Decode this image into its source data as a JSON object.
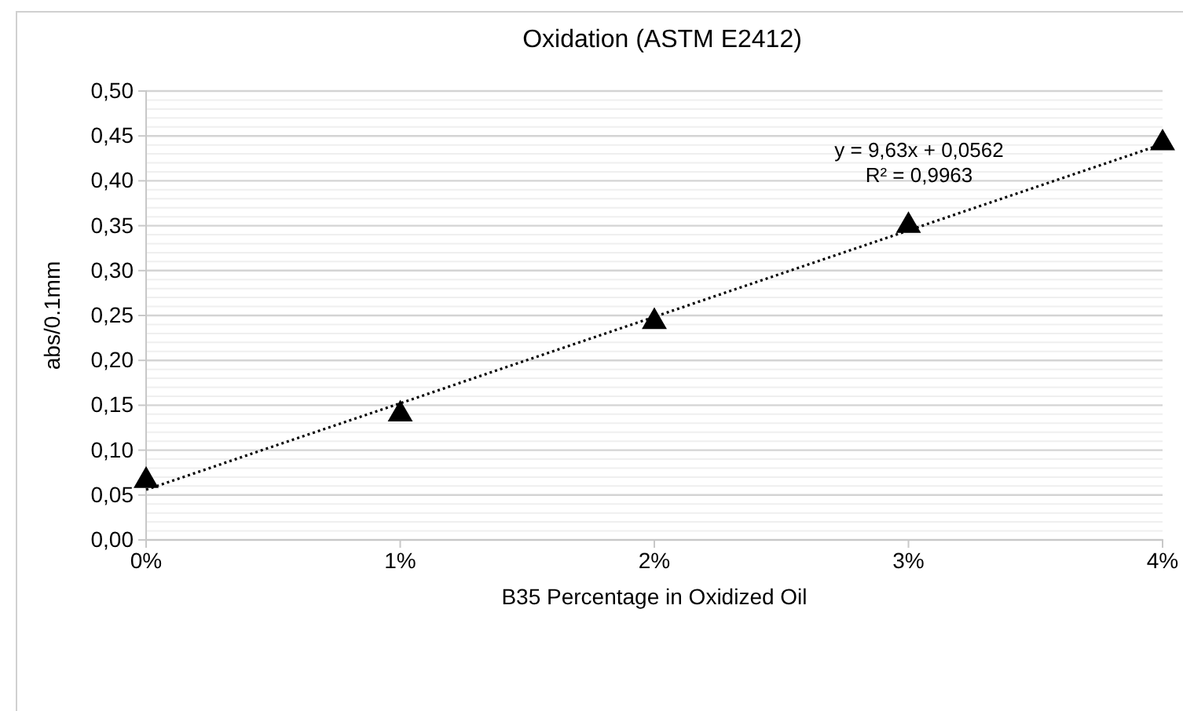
{
  "chart_data": {
    "type": "scatter",
    "title": "Oxidation (ASTM E2412)",
    "xlabel": "B35 Percentage in Oxidized Oil",
    "ylabel": "abs/0.1mm",
    "x": [
      0,
      0.01,
      0.02,
      0.03,
      0.04
    ],
    "series": [
      {
        "color": "#000000",
        "marker": "triangle",
        "values": [
          0.066,
          0.14,
          0.243,
          0.35,
          0.442
        ]
      },
      {
        "type": "line",
        "color": "#000000",
        "marker": "none",
        "line_style": "dotted",
        "x": [
          0,
          0.04
        ],
        "values": [
          0.056,
          0.441
        ]
      }
    ],
    "xlim": [
      0,
      0.04
    ],
    "xticks": [
      {
        "value": 0,
        "label": "0%"
      },
      {
        "value": 0.01,
        "label": "1%"
      },
      {
        "value": 0.02,
        "label": "2%"
      },
      {
        "value": 0.03,
        "label": "3%"
      },
      {
        "value": 0.04,
        "label": "4%"
      }
    ],
    "ylim": [
      0,
      0.5
    ],
    "yticks": [
      {
        "value": 0,
        "label": "0,00"
      },
      {
        "value": 0.01,
        "label": null
      },
      {
        "value": 0.02,
        "label": null
      },
      {
        "value": 0.03,
        "label": null
      },
      {
        "value": 0.04,
        "label": null
      },
      {
        "value": 0.05,
        "label": "0,05"
      },
      {
        "value": 0.06,
        "label": null
      },
      {
        "value": 0.07,
        "label": null
      },
      {
        "value": 0.08,
        "label": null
      },
      {
        "value": 0.09,
        "label": null
      },
      {
        "value": 0.1,
        "label": "0,10"
      },
      {
        "value": 0.11,
        "label": null
      },
      {
        "value": 0.12,
        "label": null
      },
      {
        "value": 0.13,
        "label": null
      },
      {
        "value": 0.14,
        "label": null
      },
      {
        "value": 0.15,
        "label": "0,15"
      },
      {
        "value": 0.16,
        "label": null
      },
      {
        "value": 0.17,
        "label": null
      },
      {
        "value": 0.18,
        "label": null
      },
      {
        "value": 0.19,
        "label": null
      },
      {
        "value": 0.2,
        "label": "0,20"
      },
      {
        "value": 0.21,
        "label": null
      },
      {
        "value": 0.22,
        "label": null
      },
      {
        "value": 0.23,
        "label": null
      },
      {
        "value": 0.24,
        "label": null
      },
      {
        "value": 0.25,
        "label": "0,25"
      },
      {
        "value": 0.26,
        "label": null
      },
      {
        "value": 0.27,
        "label": null
      },
      {
        "value": 0.28,
        "label": null
      },
      {
        "value": 0.29,
        "label": null
      },
      {
        "value": 0.3,
        "label": "0,30"
      },
      {
        "value": 0.31,
        "label": null
      },
      {
        "value": 0.32,
        "label": null
      },
      {
        "value": 0.33,
        "label": null
      },
      {
        "value": 0.34,
        "label": null
      },
      {
        "value": 0.35,
        "label": "0,35"
      },
      {
        "value": 0.36,
        "label": null
      },
      {
        "value": 0.37,
        "label": null
      },
      {
        "value": 0.38,
        "label": null
      },
      {
        "value": 0.39,
        "label": null
      },
      {
        "value": 0.4,
        "label": "0,40"
      },
      {
        "value": 0.41,
        "label": null
      },
      {
        "value": 0.42,
        "label": null
      },
      {
        "value": 0.43,
        "label": null
      },
      {
        "value": 0.44,
        "label": null
      },
      {
        "value": 0.45,
        "label": "0,45"
      },
      {
        "value": 0.46,
        "label": null
      },
      {
        "value": 0.47,
        "label": null
      },
      {
        "value": 0.48,
        "label": null
      },
      {
        "value": 0.49,
        "label": null
      },
      {
        "value": 0.5,
        "label": "0,50"
      }
    ],
    "grid": "y",
    "annotations": [
      "y = 9,63x + 0,0562",
      "R² = 0,9963"
    ]
  }
}
